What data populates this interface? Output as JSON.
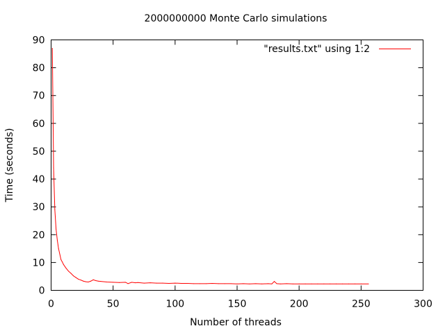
{
  "chart_data": {
    "type": "line",
    "title": "2000000000 Monte Carlo simulations",
    "xlabel": "Number of threads",
    "ylabel": "Time (seconds)",
    "xlim": [
      0,
      300
    ],
    "ylim": [
      0,
      90
    ],
    "xticks": [
      0,
      50,
      100,
      150,
      200,
      250,
      300
    ],
    "yticks": [
      0,
      10,
      20,
      30,
      40,
      50,
      60,
      70,
      80,
      90
    ],
    "grid": false,
    "legend_position": "top-right",
    "series": [
      {
        "name": "\"results.txt\" using 1:2",
        "color": "#ff0000",
        "x": [
          1,
          2,
          3,
          4,
          5,
          6,
          7,
          8,
          9,
          10,
          12,
          14,
          16,
          18,
          20,
          22,
          24,
          26,
          28,
          30,
          32,
          34,
          36,
          38,
          40,
          45,
          50,
          55,
          60,
          62,
          65,
          68,
          70,
          75,
          80,
          85,
          90,
          95,
          100,
          105,
          110,
          115,
          120,
          125,
          130,
          135,
          140,
          145,
          150,
          155,
          160,
          165,
          170,
          175,
          178,
          180,
          182,
          185,
          190,
          195,
          200,
          205,
          210,
          215,
          220,
          225,
          230,
          235,
          240,
          245,
          250,
          256
        ],
        "y": [
          87,
          44,
          29,
          22,
          18,
          15,
          13,
          11,
          10.2,
          9.3,
          8.0,
          6.9,
          6.1,
          5.2,
          4.6,
          4.0,
          3.7,
          3.3,
          3.1,
          3.0,
          3.3,
          3.8,
          3.5,
          3.3,
          3.2,
          3.0,
          2.9,
          2.8,
          2.9,
          2.4,
          2.9,
          2.7,
          2.8,
          2.6,
          2.7,
          2.6,
          2.6,
          2.5,
          2.6,
          2.5,
          2.5,
          2.4,
          2.4,
          2.4,
          2.5,
          2.4,
          2.4,
          2.4,
          2.3,
          2.4,
          2.3,
          2.4,
          2.3,
          2.4,
          2.3,
          3.2,
          2.4,
          2.3,
          2.4,
          2.3,
          2.3,
          2.3,
          2.3,
          2.3,
          2.3,
          2.3,
          2.3,
          2.3,
          2.3,
          2.3,
          2.3,
          2.3
        ]
      }
    ]
  }
}
